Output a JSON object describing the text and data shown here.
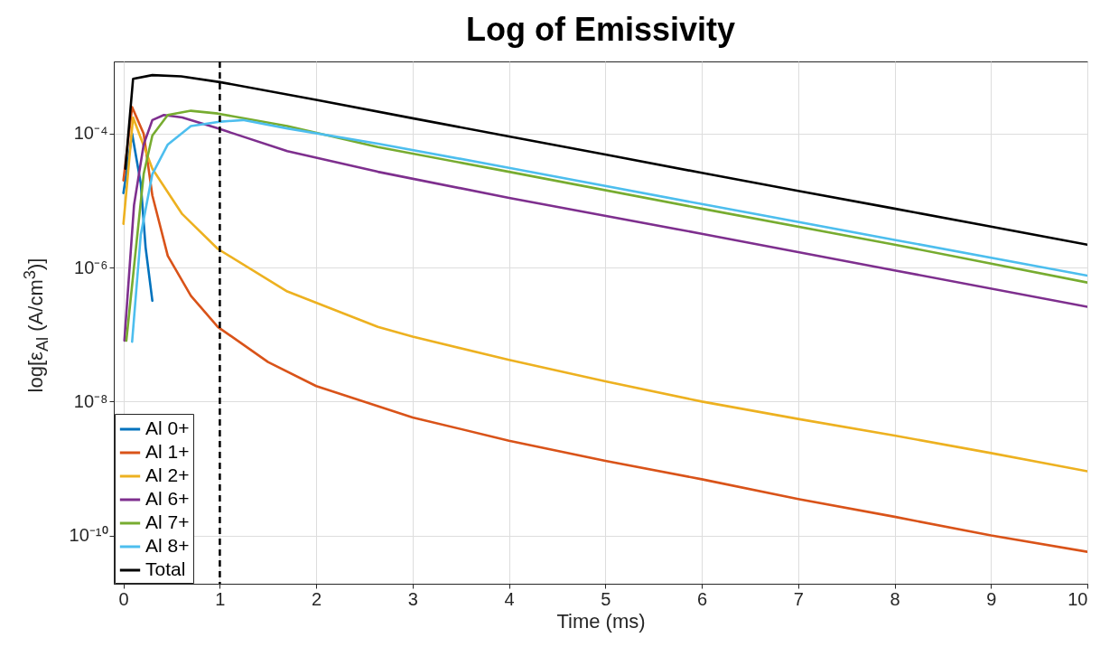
{
  "chart_data": {
    "type": "line",
    "title": "Log of Emissivity",
    "xlabel": "Time (ms)",
    "ylabel": "log[ε$_{Al}$ (A/cm$^{3}$)]",
    "log": "y",
    "grid": true,
    "legend": "bottom left",
    "line_style": "solid",
    "marker": "none",
    "xlim": [
      -0.1,
      10
    ],
    "xticks": [
      0,
      1,
      2,
      3,
      4,
      5,
      6,
      7,
      8,
      9,
      10
    ],
    "ylim": [
      1.9e-11,
      0.0012
    ],
    "yticks": [
      {
        "value": 1e-10,
        "label": "10⁻¹⁰"
      },
      {
        "value": 1e-08,
        "label": "10⁻⁸"
      },
      {
        "value": 1e-06,
        "label": "10⁻⁶"
      },
      {
        "value": 0.0001,
        "label": "10⁻⁴"
      }
    ],
    "ref_lines": [
      {
        "axis": "x",
        "value": 1,
        "color": "#000000",
        "line_style": "dashed"
      }
    ],
    "series": [
      {
        "name": "Al 0+",
        "color": "#0072bd",
        "x": [
          0,
          0.09,
          0.18,
          0.23,
          0.3
        ],
        "values": [
          1.3e-05,
          0.0001,
          1.8e-05,
          2e-06,
          3.2e-07
        ]
      },
      {
        "name": "Al 1+",
        "color": "#d95319",
        "x": [
          0,
          0.09,
          0.21,
          0.3,
          0.46,
          0.7,
          0.98,
          1.5,
          2,
          3,
          4,
          5,
          6,
          7,
          8,
          9,
          10
        ],
        "values": [
          2e-05,
          0.00025,
          0.0001,
          1.2e-05,
          1.5e-06,
          3.8e-07,
          1.3e-07,
          3.9e-08,
          1.7e-08,
          5.8e-09,
          2.6e-09,
          1.3e-09,
          6.9e-10,
          3.5e-10,
          1.9e-10,
          1e-10,
          5.7e-11
        ]
      },
      {
        "name": "Al 2+",
        "color": "#edb120",
        "x": [
          0,
          0.1,
          0.3,
          0.61,
          0.98,
          1.7,
          2.64,
          3,
          4,
          5,
          6,
          7,
          8,
          9,
          10
        ],
        "values": [
          4.5e-06,
          0.000175,
          3e-05,
          6.3e-06,
          1.9e-06,
          4.4e-07,
          1.3e-07,
          9.3e-08,
          4.2e-08,
          2e-08,
          1e-08,
          5.5e-09,
          3.1e-09,
          1.7e-09,
          9.1e-10
        ]
      },
      {
        "name": "Al 6+",
        "color": "#7e2f8e",
        "x": [
          0.01,
          0.11,
          0.21,
          0.3,
          0.42,
          0.61,
          0.98,
          1.7,
          2.64,
          4,
          6,
          8,
          10
        ],
        "values": [
          8.1e-08,
          8.6e-06,
          6.9e-05,
          0.00016,
          0.00019,
          0.000175,
          0.00012,
          5.5e-05,
          2.7e-05,
          1.1e-05,
          3.2e-06,
          9.1e-07,
          2.6e-07
        ]
      },
      {
        "name": "Al 7+",
        "color": "#77ac30",
        "x": [
          0.03,
          0.21,
          0.3,
          0.46,
          0.7,
          0.98,
          1.7,
          2.64,
          4,
          6,
          8,
          10
        ],
        "values": [
          8.1e-08,
          2.5e-05,
          9.4e-05,
          0.00019,
          0.00022,
          0.0002,
          0.00013,
          6.3e-05,
          2.7e-05,
          7.6e-06,
          2.2e-06,
          6e-07
        ]
      },
      {
        "name": "Al 8+",
        "color": "#4dbeee",
        "x": [
          0.09,
          0.18,
          0.3,
          0.46,
          0.7,
          0.98,
          1.24,
          1.7,
          2.64,
          4,
          6,
          8,
          10
        ],
        "values": [
          7.8e-08,
          3.1e-06,
          2.5e-05,
          6.9e-05,
          0.00013,
          0.00015,
          0.00016,
          0.00012,
          7.1e-05,
          3.1e-05,
          8.9e-06,
          2.6e-06,
          7.6e-07
        ]
      },
      {
        "name": "Total",
        "color": "#000000",
        "x": [
          0.02,
          0.1,
          0.3,
          0.6,
          1,
          2,
          3,
          4,
          5,
          6,
          7,
          8,
          9,
          10
        ],
        "values": [
          3e-05,
          0.00066,
          0.00075,
          0.00072,
          0.00059,
          0.00032,
          0.00017,
          9.1e-05,
          4.9e-05,
          2.6e-05,
          1.4e-05,
          7.6e-06,
          4.1e-06,
          2.2e-06
        ]
      }
    ]
  }
}
